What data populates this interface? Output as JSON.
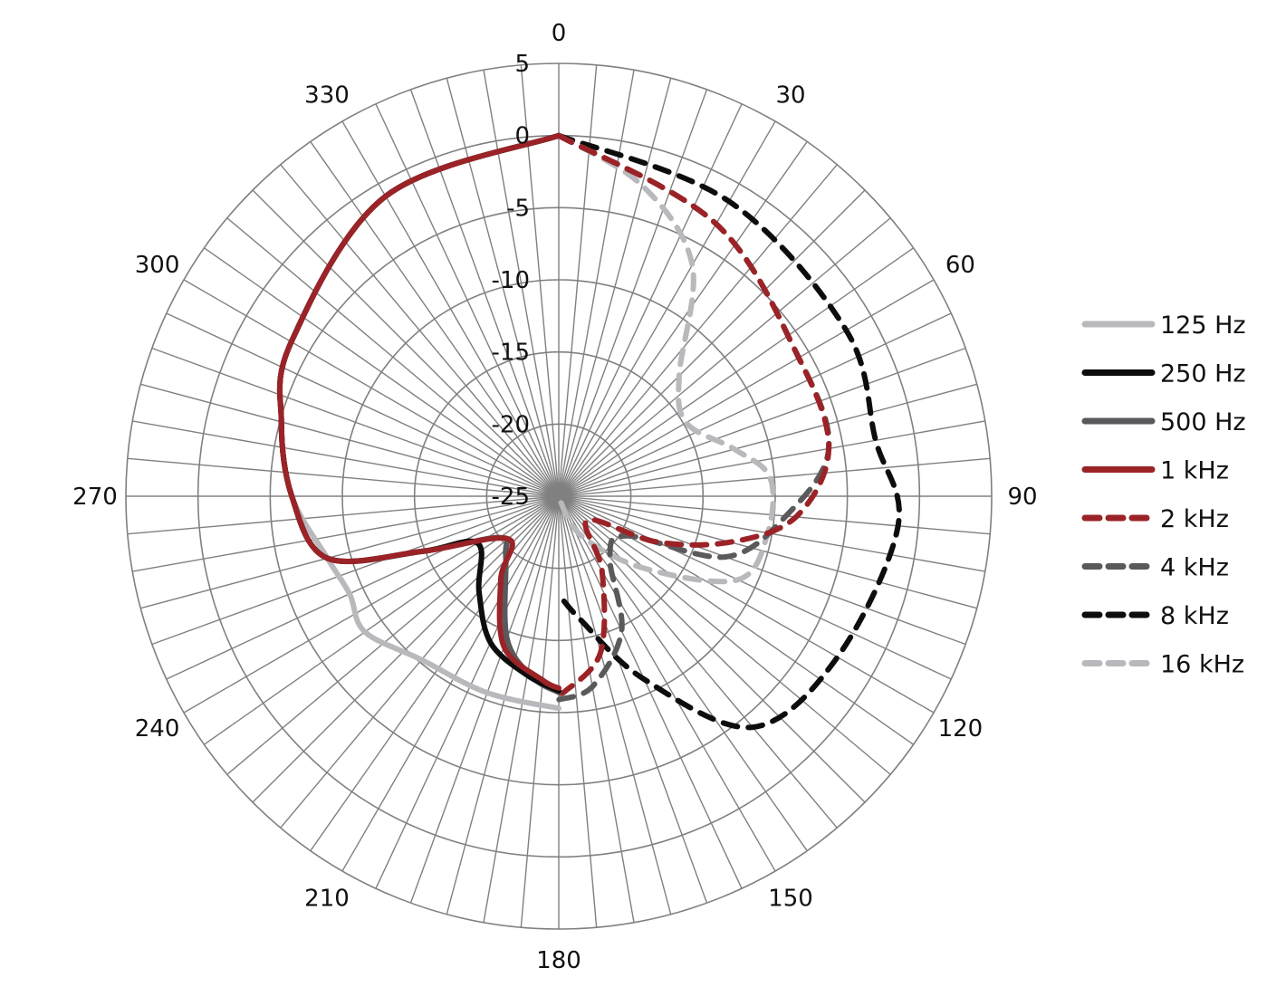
{
  "chart_data": {
    "type": "polar-line",
    "title": "",
    "angle_unit": "degrees",
    "angle_direction": "clockwise",
    "angle_zero": "top",
    "r_range": [
      -25,
      5
    ],
    "r_ticks": [
      "5",
      "0",
      "-5",
      "-10",
      "-15",
      "-20",
      "-25"
    ],
    "r_tick_values": [
      5,
      0,
      -5,
      -10,
      -15,
      -20,
      -25
    ],
    "angle_ticks": [
      "0",
      "30",
      "60",
      "90",
      "120",
      "150",
      "180",
      "210",
      "240",
      "270",
      "300",
      "330"
    ],
    "angle_tick_values": [
      0,
      30,
      60,
      90,
      120,
      150,
      180,
      210,
      240,
      270,
      300,
      330
    ],
    "minor_spoke_step_deg": 5,
    "grid": true,
    "legend_position": "right",
    "series": [
      {
        "name": "125 Hz",
        "color": "#b9b8bc",
        "dash": "solid",
        "points": [
          [
            0,
            0
          ],
          [
            330,
            -1
          ],
          [
            300,
            -3.6
          ],
          [
            285,
            -5.1
          ],
          [
            270,
            -6.5
          ],
          [
            255,
            -8.4
          ],
          [
            245,
            -9
          ],
          [
            235,
            -8.6
          ],
          [
            220,
            -10.2
          ],
          [
            200,
            -10.5
          ],
          [
            180,
            -10.3
          ]
        ]
      },
      {
        "name": "250 Hz",
        "color": "#0d0d0d",
        "dash": "solid",
        "points": [
          [
            0,
            0
          ],
          [
            330,
            -1
          ],
          [
            300,
            -3.6
          ],
          [
            285,
            -5.1
          ],
          [
            270,
            -6.5
          ],
          [
            255,
            -8.4
          ],
          [
            248,
            -14.8
          ],
          [
            240,
            -18.5
          ],
          [
            220,
            -16.4
          ],
          [
            205,
            -13.8
          ],
          [
            190,
            -12.4
          ],
          [
            180,
            -11.5
          ]
        ]
      },
      {
        "name": "500 Hz",
        "color": "#5a5a5c",
        "dash": "solid",
        "points": [
          [
            0,
            0
          ],
          [
            330,
            -1
          ],
          [
            300,
            -3.6
          ],
          [
            285,
            -5.1
          ],
          [
            270,
            -6.5
          ],
          [
            255,
            -8.4
          ],
          [
            248,
            -14.8
          ],
          [
            235,
            -20
          ],
          [
            222,
            -19.5
          ],
          [
            200,
            -14.5
          ],
          [
            188,
            -12.3
          ],
          [
            180,
            -11.4
          ]
        ]
      },
      {
        "name": "1 kHz",
        "color": "#9b2327",
        "dash": "solid",
        "points": [
          [
            0,
            0
          ],
          [
            330,
            -1
          ],
          [
            300,
            -3.6
          ],
          [
            285,
            -5.1
          ],
          [
            270,
            -6.5
          ],
          [
            255,
            -8.4
          ],
          [
            248,
            -14.8
          ],
          [
            230,
            -20.4
          ],
          [
            215,
            -18
          ],
          [
            200,
            -13.9
          ],
          [
            185,
            -12.2
          ],
          [
            180,
            -11.7
          ]
        ]
      },
      {
        "name": "2 kHz",
        "color": "#9b2327",
        "dash": "dash",
        "points": [
          [
            0,
            0
          ],
          [
            30,
            -3.2
          ],
          [
            60,
            -5.8
          ],
          [
            80,
            -6
          ],
          [
            95,
            -8.5
          ],
          [
            105,
            -12.7
          ],
          [
            115,
            -17.5
          ],
          [
            130,
            -22.4
          ],
          [
            150,
            -19
          ],
          [
            165,
            -13.8
          ],
          [
            178,
            -11.5
          ],
          [
            180,
            -11.6
          ]
        ]
      },
      {
        "name": "4 kHz",
        "color": "#5a5a5c",
        "dash": "dash",
        "points": [
          [
            0,
            0
          ],
          [
            30,
            -3.2
          ],
          [
            60,
            -5.8
          ],
          [
            80,
            -6
          ],
          [
            95,
            -9.2
          ],
          [
            110,
            -12.7
          ],
          [
            120,
            -19.5
          ],
          [
            140,
            -19.5
          ],
          [
            155,
            -14.7
          ],
          [
            170,
            -11.6
          ],
          [
            180,
            -10.9
          ]
        ]
      },
      {
        "name": "8 kHz",
        "color": "#0d0d0d",
        "dash": "dash",
        "points": [
          [
            0,
            0
          ],
          [
            30,
            -1.4
          ],
          [
            60,
            -2
          ],
          [
            80,
            -2.7
          ],
          [
            95,
            -1.4
          ],
          [
            120,
            -2.7
          ],
          [
            140,
            -4.1
          ],
          [
            155,
            -11
          ],
          [
            170,
            -16.3
          ],
          [
            180,
            -18.2
          ]
        ]
      },
      {
        "name": "16 kHz",
        "color": "#b9b8bc",
        "dash": "dash",
        "points": [
          [
            0,
            0
          ],
          [
            15,
            -2.7
          ],
          [
            30,
            -6.5
          ],
          [
            45,
            -13.2
          ],
          [
            60,
            -14.8
          ],
          [
            75,
            -12.4
          ],
          [
            85,
            -10.3
          ],
          [
            100,
            -10.3
          ],
          [
            115,
            -11.3
          ],
          [
            130,
            -17.2
          ],
          [
            150,
            -21.8
          ],
          [
            170,
            -24.8
          ]
        ]
      }
    ]
  }
}
